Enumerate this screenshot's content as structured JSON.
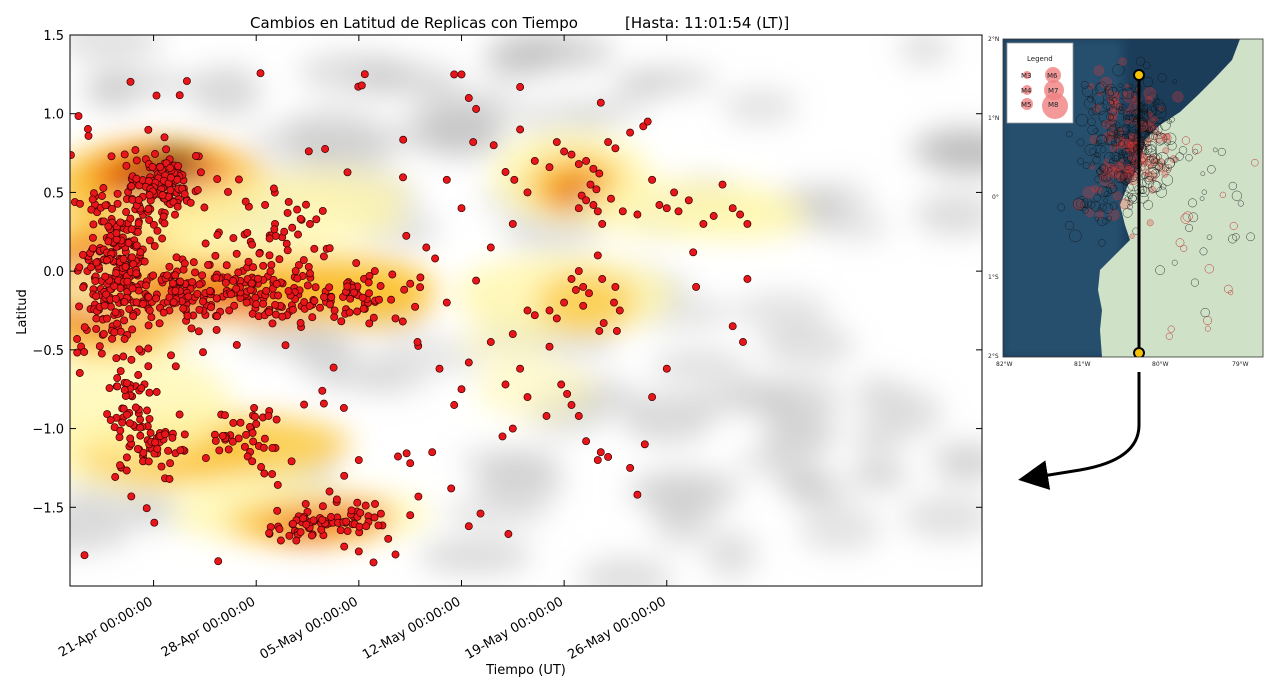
{
  "chart_data": {
    "type": "scatter",
    "title": "Cambios en Latitud de Replicas con Tiempo",
    "subtitle": "[Hasta: 11:01:54 (LT)]",
    "xlabel": "Tiempo (UT)",
    "ylabel": "Latitud",
    "ylim": [
      -2.0,
      1.5
    ],
    "xlim_days": [
      -5.7,
      56.5
    ],
    "x_ticks": [
      {
        "day": 0,
        "label": "21-Apr 00:00:00"
      },
      {
        "day": 7,
        "label": "28-Apr 00:00:00"
      },
      {
        "day": 14,
        "label": "05-May 00:00:00"
      },
      {
        "day": 21,
        "label": "12-May 00:00:00"
      },
      {
        "day": 28,
        "label": "19-May 00:00:00"
      },
      {
        "day": 35,
        "label": "26-May 00:00:00"
      }
    ],
    "y_ticks": [
      1.5,
      1.0,
      0.5,
      0.0,
      -0.5,
      -1.0,
      -1.5
    ],
    "y_tick_labels": [
      "1.5",
      "1.0",
      "0.5",
      "0.0",
      "−0.5",
      "−1.0",
      "−1.5"
    ],
    "marker_color": "#e8161b",
    "series": [
      {
        "points": [
          [
            14.2,
            1.18
          ],
          [
            20.5,
            1.25
          ],
          [
            21.0,
            1.25
          ],
          [
            21.5,
            1.1
          ],
          [
            22.0,
            1.03
          ],
          [
            25.0,
            1.17
          ],
          [
            30.5,
            1.07
          ],
          [
            31.0,
            0.82
          ],
          [
            31.5,
            0.78
          ],
          [
            27.5,
            0.82
          ],
          [
            28.0,
            0.76
          ],
          [
            28.5,
            0.74
          ],
          [
            29.0,
            0.68
          ],
          [
            29.5,
            0.7
          ],
          [
            30.0,
            0.65
          ],
          [
            30.4,
            0.62
          ],
          [
            29.8,
            0.55
          ],
          [
            30.2,
            0.52
          ],
          [
            29.2,
            0.48
          ],
          [
            29.5,
            0.45
          ],
          [
            30.0,
            0.42
          ],
          [
            29.0,
            0.4
          ],
          [
            30.3,
            0.38
          ],
          [
            30.6,
            0.3
          ],
          [
            31.2,
            0.46
          ],
          [
            32.0,
            0.38
          ],
          [
            33.0,
            0.36
          ],
          [
            34.5,
            0.42
          ],
          [
            35.0,
            0.4
          ],
          [
            35.8,
            0.38
          ],
          [
            36.5,
            0.45
          ],
          [
            37.5,
            0.3
          ],
          [
            38.2,
            0.35
          ],
          [
            38.8,
            0.55
          ],
          [
            39.5,
            0.4
          ],
          [
            40.0,
            0.36
          ],
          [
            40.5,
            0.3
          ],
          [
            27.0,
            0.66
          ],
          [
            26.0,
            0.7
          ],
          [
            24.6,
            0.58
          ],
          [
            25.5,
            0.5
          ],
          [
            33.4,
            0.92
          ],
          [
            33.7,
            0.95
          ],
          [
            32.5,
            0.88
          ],
          [
            30.3,
            0.1
          ],
          [
            29.0,
            0.0
          ],
          [
            28.5,
            -0.05
          ],
          [
            29.3,
            -0.1
          ],
          [
            29.7,
            -0.14
          ],
          [
            30.6,
            -0.05
          ],
          [
            31.5,
            -0.1
          ],
          [
            31.4,
            -0.2
          ],
          [
            31.8,
            -0.25
          ],
          [
            31.6,
            -0.38
          ],
          [
            30.7,
            -0.33
          ],
          [
            28.0,
            -0.2
          ],
          [
            27.0,
            -0.25
          ],
          [
            27.5,
            -0.3
          ],
          [
            26.0,
            -0.28
          ],
          [
            25.5,
            -0.25
          ],
          [
            27.0,
            -0.48
          ],
          [
            30.4,
            -0.38
          ],
          [
            29.3,
            -0.22
          ],
          [
            28.8,
            -0.12
          ],
          [
            20.0,
            -0.2
          ],
          [
            19.2,
            0.08
          ],
          [
            18.6,
            0.15
          ],
          [
            17.5,
            -0.08
          ],
          [
            18.2,
            -0.04
          ],
          [
            18.0,
            -0.45
          ],
          [
            16.5,
            -0.3
          ],
          [
            17.0,
            -0.32
          ],
          [
            22.0,
            -0.06
          ],
          [
            23.0,
            0.15
          ],
          [
            24.5,
            0.3
          ],
          [
            24.0,
            0.63
          ],
          [
            21.8,
            0.82
          ],
          [
            23.2,
            0.8
          ],
          [
            21.0,
            0.4
          ],
          [
            20.0,
            0.58
          ],
          [
            25.0,
            0.9
          ],
          [
            34.0,
            0.58
          ],
          [
            35.5,
            0.5
          ],
          [
            36.8,
            0.12
          ],
          [
            37.0,
            -0.1
          ],
          [
            39.5,
            -0.35
          ],
          [
            40.5,
            -0.05
          ],
          [
            40.2,
            -0.45
          ],
          [
            35.0,
            -0.62
          ],
          [
            34.0,
            -0.8
          ],
          [
            33.5,
            -1.1
          ],
          [
            33.0,
            -1.42
          ],
          [
            32.5,
            -1.25
          ],
          [
            31.0,
            -1.18
          ],
          [
            30.5,
            -1.15
          ],
          [
            30.3,
            -1.2
          ],
          [
            29.5,
            -1.08
          ],
          [
            29.0,
            -0.92
          ],
          [
            28.5,
            -0.85
          ],
          [
            28.2,
            -0.78
          ],
          [
            27.8,
            -0.72
          ],
          [
            26.8,
            -0.92
          ],
          [
            25.5,
            -0.8
          ],
          [
            25.0,
            -0.62
          ],
          [
            24.0,
            -0.72
          ],
          [
            24.5,
            -1.0
          ],
          [
            23.8,
            -1.05
          ],
          [
            24.5,
            -0.4
          ],
          [
            23.0,
            -0.45
          ],
          [
            21.5,
            -0.58
          ],
          [
            21.0,
            -0.75
          ],
          [
            19.5,
            -0.62
          ],
          [
            20.5,
            -0.85
          ],
          [
            19.0,
            -1.15
          ],
          [
            17.5,
            -1.22
          ],
          [
            17.5,
            -1.55
          ],
          [
            16.0,
            -1.7
          ],
          [
            16.5,
            -1.8
          ],
          [
            15.0,
            -1.85
          ],
          [
            14.0,
            -1.78
          ],
          [
            13.0,
            -1.75
          ],
          [
            14.5,
            -1.62
          ],
          [
            13.5,
            -1.52
          ],
          [
            12.5,
            -1.45
          ],
          [
            11.5,
            -1.58
          ],
          [
            12.0,
            -1.4
          ],
          [
            13.0,
            -1.3
          ],
          [
            14.0,
            -1.2
          ],
          [
            21.5,
            -1.62
          ],
          [
            20.3,
            -1.38
          ],
          [
            22.3,
            -1.54
          ],
          [
            24.2,
            -1.67
          ]
        ]
      }
    ],
    "heat_color_scale": [
      "#b8b8b8",
      "#fff7b2",
      "#fbc02d",
      "#ef6c00",
      "#b23c00",
      "#5a1e00"
    ],
    "grid": false,
    "legend": "none"
  },
  "map": {
    "legend_title": "Legend",
    "legend_items": [
      "M3",
      "M6",
      "M4",
      "M7",
      "M5",
      "M8"
    ],
    "lat_labels": [
      "2°N",
      "1°N",
      "0°",
      "1°S",
      "2°S"
    ],
    "lon_labels": [
      "82°W",
      "81°W",
      "80°W",
      "79°W"
    ],
    "ocean_color": "#1b3d5a",
    "land_color": "#cfe2c8"
  }
}
